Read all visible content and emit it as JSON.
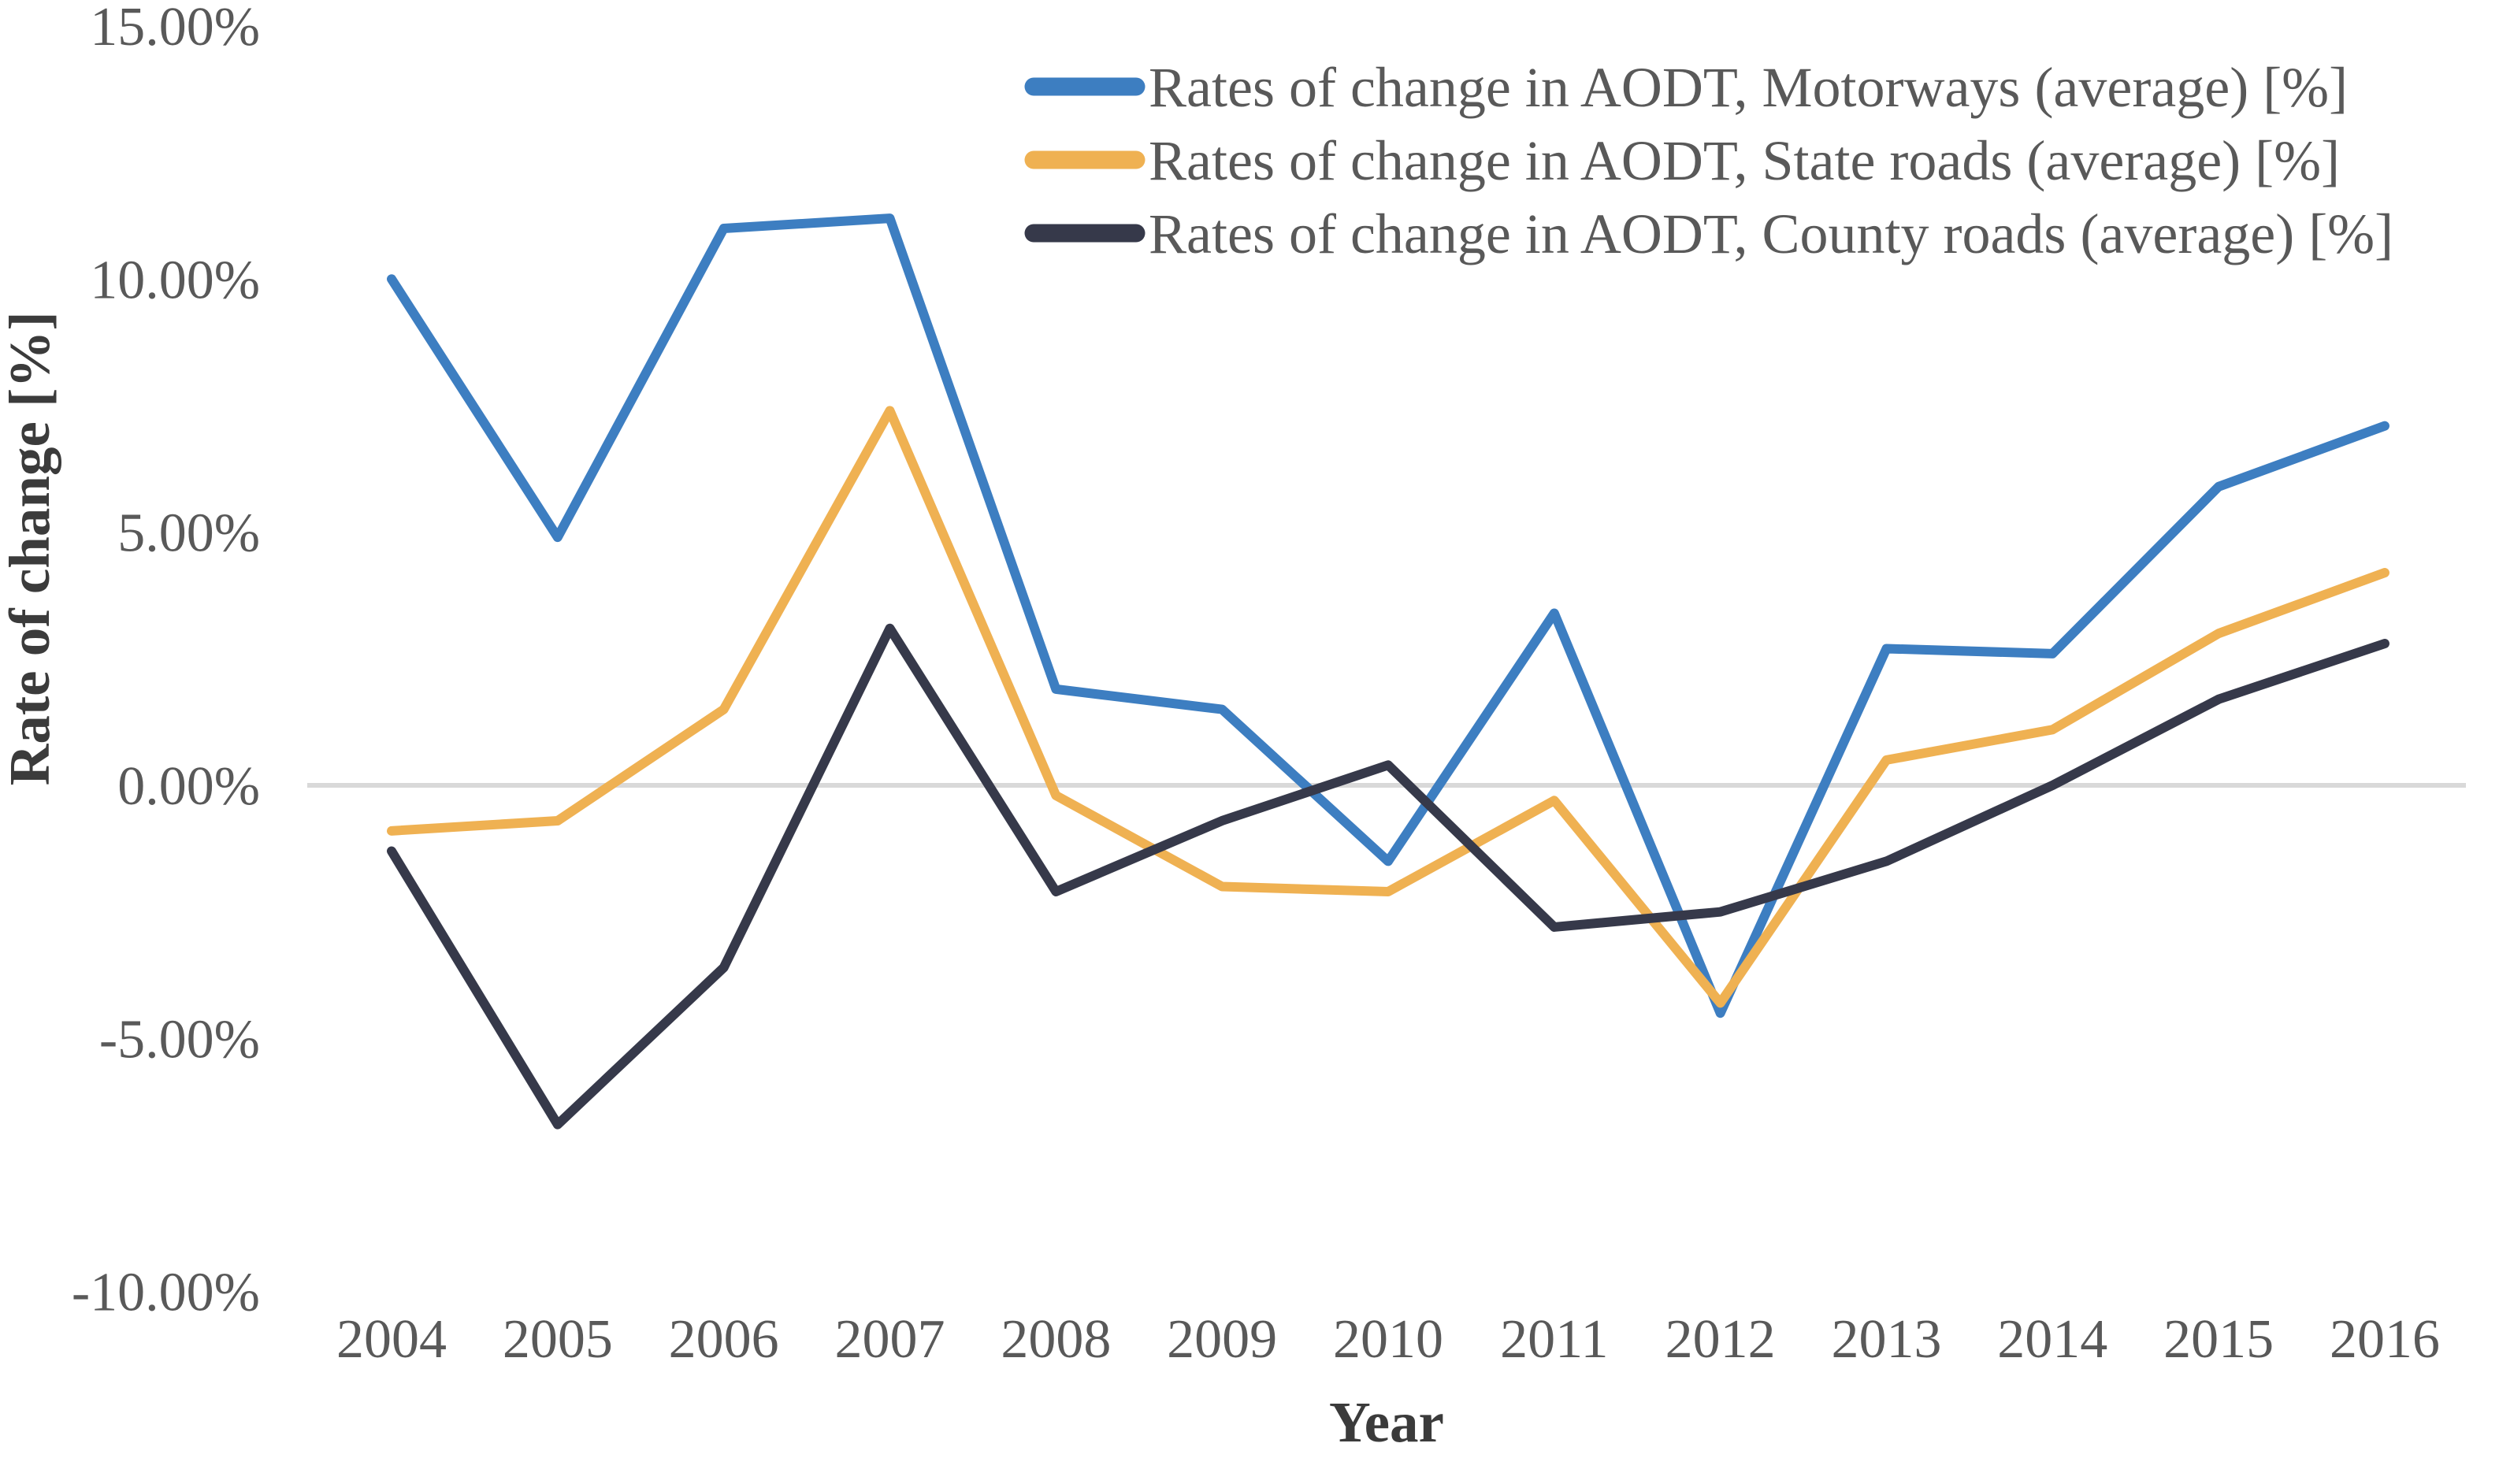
{
  "chart_data": {
    "type": "line",
    "title": "",
    "xlabel": "Year",
    "ylabel": "Rate of change [%]",
    "x": [
      2004,
      2005,
      2006,
      2007,
      2008,
      2009,
      2010,
      2011,
      2012,
      2013,
      2014,
      2015,
      2016
    ],
    "series": [
      {
        "name": "Rates of change in AODT, Motorways (average) [%]",
        "color": "#3D7EC1",
        "values": [
          10.0,
          4.9,
          11.0,
          11.2,
          1.9,
          1.5,
          -1.5,
          3.4,
          -4.5,
          2.7,
          2.6,
          5.9,
          7.1
        ]
      },
      {
        "name": "Rates of change in AODT, State roads (average) [%]",
        "color": "#EFB152",
        "values": [
          -0.9,
          -0.7,
          1.5,
          7.4,
          -0.2,
          -2.0,
          -2.1,
          -0.3,
          -4.3,
          0.5,
          1.1,
          3.0,
          4.2
        ]
      },
      {
        "name": "Rates of change in AODT, County roads (average) [%]",
        "color": "#36394A",
        "values": [
          -1.3,
          -6.7,
          -3.6,
          3.1,
          -2.1,
          -0.7,
          0.4,
          -2.8,
          -2.5,
          -1.5,
          0.0,
          1.7,
          2.8
        ]
      }
    ],
    "ylim": [
      -10,
      15
    ],
    "ytick_step": 5,
    "ytick_labels": [
      "15.00%",
      "10.00%",
      "5.00%",
      "0.00%",
      "-5.00%",
      "-10.00%"
    ],
    "ytick_values": [
      15,
      10,
      5,
      0,
      -5,
      -10
    ],
    "grid": "zero-line-only",
    "zero_line_color": "#D9D9D9",
    "legend_position": "top-right",
    "text_color": "#595959",
    "axis_title_color": "#3B3B3B",
    "background_color": "#FFFFFF"
  }
}
